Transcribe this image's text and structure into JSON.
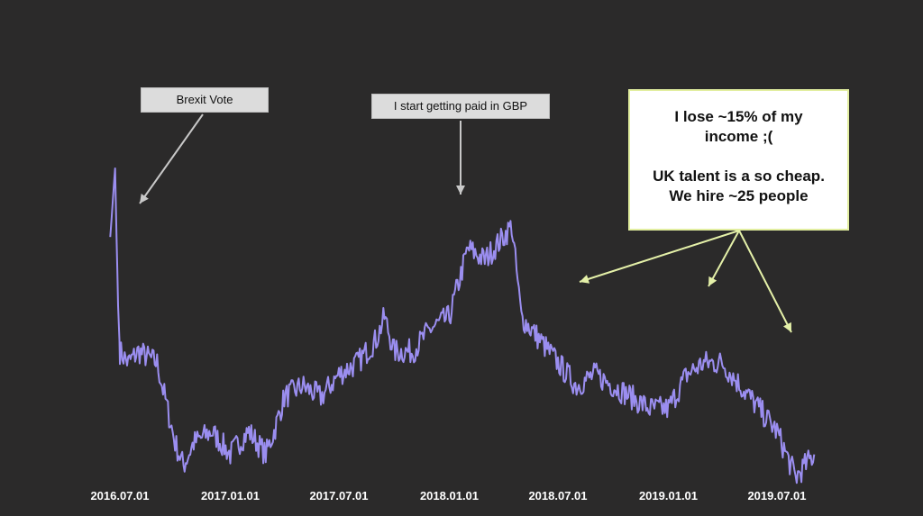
{
  "chart_data": {
    "type": "line",
    "x_tick_labels": [
      "2016.07.01",
      "2017.01.01",
      "2017.07.01",
      "2018.01.01",
      "2018.07.01",
      "2019.01.01",
      "2019.07.01"
    ],
    "series": [
      {
        "values_note_free": true,
        "color": "#9b8ef0",
        "x": [
          "2016.06.15",
          "2016.06.23",
          "2016.06.28",
          "2016.07.01",
          "2016.07.15",
          "2016.08.01",
          "2016.09.01",
          "2016.10.01",
          "2016.10.15",
          "2016.11.01",
          "2016.12.01",
          "2017.01.01",
          "2017.01.15",
          "2017.02.01",
          "2017.03.01",
          "2017.03.15",
          "2017.04.01",
          "2017.05.01",
          "2017.06.01",
          "2017.07.01",
          "2017.08.01",
          "2017.09.01",
          "2017.09.15",
          "2017.10.01",
          "2017.11.01",
          "2017.12.01",
          "2018.01.01",
          "2018.02.01",
          "2018.03.01",
          "2018.04.01",
          "2018.04.15",
          "2018.05.01",
          "2018.06.01",
          "2018.07.01",
          "2018.08.01",
          "2018.09.01",
          "2018.10.01",
          "2018.11.01",
          "2018.12.01",
          "2019.01.01",
          "2019.02.01",
          "2019.03.01",
          "2019.04.01",
          "2019.05.01",
          "2019.06.01",
          "2019.07.01",
          "2019.08.01",
          "2019.09.01"
        ],
        "y": [
          1.42,
          1.48,
          1.36,
          1.32,
          1.31,
          1.32,
          1.31,
          1.24,
          1.22,
          1.24,
          1.25,
          1.23,
          1.24,
          1.25,
          1.23,
          1.25,
          1.28,
          1.29,
          1.28,
          1.3,
          1.31,
          1.33,
          1.35,
          1.32,
          1.32,
          1.34,
          1.35,
          1.41,
          1.4,
          1.42,
          1.43,
          1.35,
          1.33,
          1.31,
          1.29,
          1.3,
          1.29,
          1.28,
          1.27,
          1.27,
          1.3,
          1.31,
          1.31,
          1.29,
          1.27,
          1.25,
          1.21,
          1.23
        ]
      }
    ]
  },
  "annotations": {
    "brexit": "Brexit Vote",
    "paid": "I start getting paid in GBP",
    "lose_line1": "I lose ~15% of my",
    "lose_line2": "income ;(",
    "talent_line1": "UK talent is a so cheap.",
    "talent_line2": "We hire ~25 people"
  },
  "colors": {
    "background": "#2b2a2a",
    "line": "#9b8ef0",
    "tick_text": "#ffffff",
    "arrow_grey": "#c8c8c8",
    "arrow_yellow": "#e4f0a8"
  }
}
